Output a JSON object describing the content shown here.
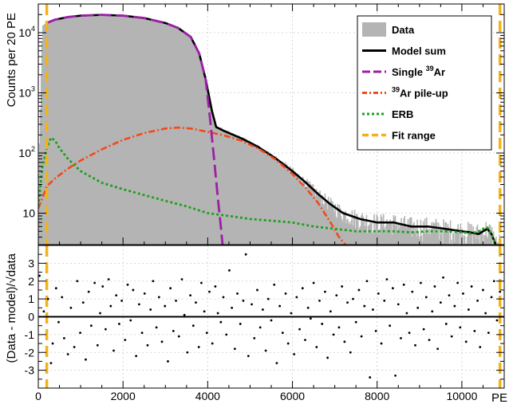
{
  "chart_data": [
    {
      "type": "area",
      "panel": "top",
      "ylabel": "Counts per 20 PE",
      "yscale": "log",
      "xlim": [
        0,
        11000
      ],
      "ylim": [
        3,
        30000
      ],
      "y_tick_labels": [
        {
          "value": 10,
          "base": "10",
          "exp": ""
        },
        {
          "value": 100,
          "base": "10",
          "exp": "2"
        },
        {
          "value": 1000,
          "base": "10",
          "exp": "3"
        },
        {
          "value": 10000,
          "base": "10",
          "exp": "4"
        }
      ],
      "grid": true,
      "legend_position": "top-right",
      "legend": [
        {
          "key": "data",
          "text": "Data",
          "sup": "",
          "text_after": "",
          "color": "#b4b4b4",
          "style": "fill"
        },
        {
          "key": "model",
          "text": "Model sum",
          "sup": "",
          "text_after": "",
          "color": "#000000",
          "style": "solid"
        },
        {
          "key": "single",
          "text": "Single ",
          "sup": "39",
          "text_after": "Ar",
          "color": "#9b1fa6",
          "style": "longdash"
        },
        {
          "key": "pileup",
          "text": "",
          "sup": "39",
          "text_after": "Ar pile-up",
          "color": "#f24a1a",
          "style": "dashdot"
        },
        {
          "key": "erb",
          "text": "ERB",
          "sup": "",
          "text_after": "",
          "color": "#1fa01f",
          "style": "dotted"
        },
        {
          "key": "fit",
          "text": "Fit range",
          "sup": "",
          "text_after": "",
          "color": "#f2b21a",
          "style": "dashed"
        }
      ],
      "fit_range": [
        200,
        10900
      ],
      "series": [
        {
          "name": "Data",
          "key": "data",
          "x": [
            0,
            100,
            200,
            400,
            700,
            1000,
            1500,
            2000,
            2500,
            3000,
            3300,
            3600,
            3800,
            3950,
            4100,
            4200,
            4400,
            4800,
            5200,
            5600,
            6000,
            6300,
            6600,
            6900,
            7200,
            7600,
            8000,
            8400,
            8800,
            9200,
            9600,
            10000,
            10200,
            10400,
            10500,
            10600,
            10700,
            10800
          ],
          "values": [
            22,
            13000,
            14500,
            16500,
            18200,
            19200,
            19800,
            19200,
            17500,
            14500,
            12000,
            8500,
            4500,
            1700,
            500,
            270,
            230,
            175,
            125,
            82,
            50,
            33,
            21,
            14,
            10,
            8,
            7,
            7,
            6,
            6,
            5.5,
            5,
            4.8,
            4.5,
            5,
            5.5,
            4.5,
            3
          ]
        },
        {
          "name": "Model sum",
          "key": "model",
          "x": [
            200,
            400,
            700,
            1000,
            1500,
            2000,
            2500,
            3000,
            3300,
            3600,
            3800,
            3950,
            4100,
            4200,
            4400,
            4800,
            5200,
            5600,
            6000,
            6300,
            6600,
            6900,
            7200,
            7600,
            8000,
            8400,
            8800,
            9200,
            9600,
            10000,
            10200,
            10400,
            10500,
            10600,
            10700,
            10800
          ],
          "values": [
            14500,
            16500,
            18200,
            19200,
            19800,
            19200,
            17500,
            14500,
            12000,
            8500,
            4500,
            1700,
            500,
            270,
            230,
            175,
            125,
            82,
            50,
            33,
            21,
            14,
            10,
            8,
            7,
            7,
            6,
            6,
            5.5,
            5,
            4.8,
            4.5,
            5,
            5.5,
            4.5,
            3
          ]
        },
        {
          "name": "Single 39Ar",
          "key": "single",
          "x": [
            200,
            400,
            700,
            1000,
            1500,
            2000,
            2500,
            3000,
            3300,
            3600,
            3800,
            3950,
            4050,
            4150,
            4250,
            4300,
            4350
          ],
          "values": [
            14500,
            16500,
            18200,
            19200,
            19800,
            19200,
            17500,
            14500,
            12000,
            8500,
            4500,
            1700,
            400,
            80,
            15,
            7,
            3
          ]
        },
        {
          "name": "39Ar pile-up",
          "key": "pileup",
          "x": [
            0,
            100,
            200,
            400,
            700,
            1000,
            1500,
            2000,
            2500,
            3000,
            3300,
            3600,
            4000,
            4400,
            4800,
            5200,
            5600,
            6000,
            6300,
            6600,
            6900,
            7100,
            7250
          ],
          "values": [
            12,
            18,
            28,
            38,
            55,
            75,
            115,
            165,
            215,
            255,
            265,
            255,
            225,
            195,
            160,
            118,
            78,
            45,
            27,
            15,
            7,
            4,
            3
          ]
        },
        {
          "name": "ERB",
          "key": "erb",
          "x": [
            0,
            100,
            200,
            300,
            400,
            500,
            700,
            1000,
            1500,
            2000,
            2500,
            3000,
            3500,
            4000,
            4500,
            5000,
            5500,
            6000,
            6500,
            7000,
            7500,
            8000,
            8400,
            8800,
            9200,
            9600,
            10000,
            10200,
            10400,
            10500,
            10600,
            10700,
            10800
          ],
          "values": [
            13,
            60,
            120,
            180,
            160,
            120,
            80,
            50,
            32,
            25,
            20,
            16,
            13,
            10,
            9,
            8,
            7.5,
            7,
            6,
            5.5,
            5,
            5,
            5,
            4.8,
            5,
            5,
            4.8,
            4.6,
            5,
            5.5,
            5.8,
            4.5,
            3
          ]
        }
      ]
    },
    {
      "type": "scatter",
      "panel": "bottom",
      "ylabel": "(Data - model)/√data",
      "xlabel": "PE",
      "xlim": [
        0,
        11000
      ],
      "ylim": [
        -4,
        4
      ],
      "x_ticks": [
        0,
        2000,
        4000,
        6000,
        8000,
        10000
      ],
      "y_ticks": [
        -3,
        -2,
        -1,
        0,
        1,
        2,
        3
      ],
      "grid": true,
      "zero_line": true,
      "points": [
        [
          30,
          2.3
        ],
        [
          130,
          0.3
        ],
        [
          230,
          1.0
        ],
        [
          300,
          -2.6
        ],
        [
          340,
          -1.5
        ],
        [
          420,
          1.6
        ],
        [
          480,
          -0.3
        ],
        [
          560,
          1.1
        ],
        [
          610,
          -1.2
        ],
        [
          700,
          -2.1
        ],
        [
          770,
          0.5
        ],
        [
          850,
          -1.7
        ],
        [
          920,
          2.0
        ],
        [
          990,
          -0.9
        ],
        [
          1060,
          0.8
        ],
        [
          1120,
          -2.4
        ],
        [
          1190,
          1.4
        ],
        [
          1250,
          -0.5
        ],
        [
          1330,
          1.9
        ],
        [
          1400,
          -1.6
        ],
        [
          1460,
          0.2
        ],
        [
          1520,
          1.7
        ],
        [
          1590,
          -0.7
        ],
        [
          1660,
          2.1
        ],
        [
          1710,
          0.6
        ],
        [
          1780,
          -1.9
        ],
        [
          1840,
          1.2
        ],
        [
          1910,
          -0.4
        ],
        [
          1970,
          0.9
        ],
        [
          2050,
          -1.3
        ],
        [
          2110,
          1.8
        ],
        [
          2180,
          -0.2
        ],
        [
          2240,
          1.5
        ],
        [
          2310,
          -2.2
        ],
        [
          2380,
          0.7
        ],
        [
          2450,
          -0.9
        ],
        [
          2510,
          1.3
        ],
        [
          2580,
          -1.6
        ],
        [
          2650,
          0.4
        ],
        [
          2710,
          2.0
        ],
        [
          2790,
          -0.6
        ],
        [
          2850,
          1.1
        ],
        [
          2920,
          -1.4
        ],
        [
          2990,
          0.6
        ],
        [
          3060,
          -2.5
        ],
        [
          3120,
          1.6
        ],
        [
          3190,
          -0.8
        ],
        [
          3250,
          0.9
        ],
        [
          3320,
          -1.1
        ],
        [
          3390,
          2.1
        ],
        [
          3450,
          0.1
        ],
        [
          3520,
          -2.0
        ],
        [
          3590,
          1.2
        ],
        [
          3660,
          -0.5
        ],
        [
          3720,
          0.8
        ],
        [
          3790,
          -1.7
        ],
        [
          3850,
          1.9
        ],
        [
          3920,
          0.3
        ],
        [
          3980,
          -0.9
        ],
        [
          4040,
          1.4
        ],
        [
          4110,
          -1.5
        ],
        [
          4180,
          1.7
        ],
        [
          4240,
          0.2
        ],
        [
          4310,
          -0.3
        ],
        [
          4370,
          1.1
        ],
        [
          4440,
          -1.0
        ],
        [
          4510,
          2.6
        ],
        [
          4570,
          0.5
        ],
        [
          4640,
          -1.8
        ],
        [
          4700,
          1.3
        ],
        [
          4770,
          -0.4
        ],
        [
          4840,
          0.9
        ],
        [
          4900,
          3.5
        ],
        [
          4960,
          -2.2
        ],
        [
          5040,
          0.7
        ],
        [
          5100,
          -1.2
        ],
        [
          5170,
          1.5
        ],
        [
          5240,
          -0.6
        ],
        [
          5300,
          0.4
        ],
        [
          5370,
          -1.9
        ],
        [
          5430,
          1.0
        ],
        [
          5500,
          -0.2
        ],
        [
          5570,
          1.8
        ],
        [
          5630,
          -2.6
        ],
        [
          5700,
          0.6
        ],
        [
          5770,
          -0.9
        ],
        [
          5840,
          1.3
        ],
        [
          5900,
          -1.5
        ],
        [
          5970,
          0.2
        ],
        [
          6040,
          -2.1
        ],
        [
          6100,
          1.1
        ],
        [
          6170,
          -0.7
        ],
        [
          6240,
          1.6
        ],
        [
          6300,
          -1.3
        ],
        [
          6370,
          0.5
        ],
        [
          6430,
          -0.1
        ],
        [
          6500,
          1.9
        ],
        [
          6570,
          -1.7
        ],
        [
          6640,
          0.9
        ],
        [
          6700,
          -0.4
        ],
        [
          6770,
          1.4
        ],
        [
          6830,
          -2.3
        ],
        [
          6900,
          0.3
        ],
        [
          6970,
          -1.0
        ],
        [
          7040,
          1.2
        ],
        [
          7100,
          -0.6
        ],
        [
          7170,
          1.7
        ],
        [
          7230,
          -1.4
        ],
        [
          7300,
          0.8
        ],
        [
          7370,
          -2.0
        ],
        [
          7430,
          1.0
        ],
        [
          7500,
          -0.3
        ],
        [
          7570,
          1.5
        ],
        [
          7630,
          -1.1
        ],
        [
          7700,
          0.6
        ],
        [
          7760,
          2.0
        ],
        [
          7830,
          -3.4
        ],
        [
          7900,
          0.4
        ],
        [
          7970,
          -0.8
        ],
        [
          8030,
          1.3
        ],
        [
          8100,
          -1.5
        ],
        [
          8170,
          0.9
        ],
        [
          8230,
          2.1
        ],
        [
          8300,
          -0.5
        ],
        [
          8370,
          1.6
        ],
        [
          8430,
          -3.3
        ],
        [
          8500,
          0.7
        ],
        [
          8560,
          -1.2
        ],
        [
          8630,
          1.8
        ],
        [
          8700,
          0.2
        ],
        [
          8760,
          -0.9
        ],
        [
          8830,
          1.4
        ],
        [
          8900,
          -1.6
        ],
        [
          8960,
          0.5
        ],
        [
          9030,
          1.9
        ],
        [
          9100,
          -0.7
        ],
        [
          9160,
          1.1
        ],
        [
          9230,
          -1.3
        ],
        [
          9300,
          0.3
        ],
        [
          9360,
          1.7
        ],
        [
          9430,
          -1.8
        ],
        [
          9500,
          0.8
        ],
        [
          9560,
          2.2
        ],
        [
          9630,
          -0.4
        ],
        [
          9700,
          1.2
        ],
        [
          9760,
          -1.1
        ],
        [
          9830,
          0.6
        ],
        [
          9900,
          1.9
        ],
        [
          9960,
          -0.6
        ],
        [
          10030,
          1.3
        ],
        [
          10100,
          -1.4
        ],
        [
          10160,
          0.4
        ],
        [
          10230,
          1.7
        ],
        [
          10300,
          -0.8
        ],
        [
          10370,
          0.9
        ],
        [
          10430,
          -1.7
        ],
        [
          10500,
          1.5
        ],
        [
          10560,
          0.2
        ],
        [
          10630,
          -0.9
        ],
        [
          10700,
          1.1
        ],
        [
          10760,
          2.0
        ],
        [
          10830,
          -0.2
        ],
        [
          10900,
          1.4
        ]
      ]
    }
  ]
}
